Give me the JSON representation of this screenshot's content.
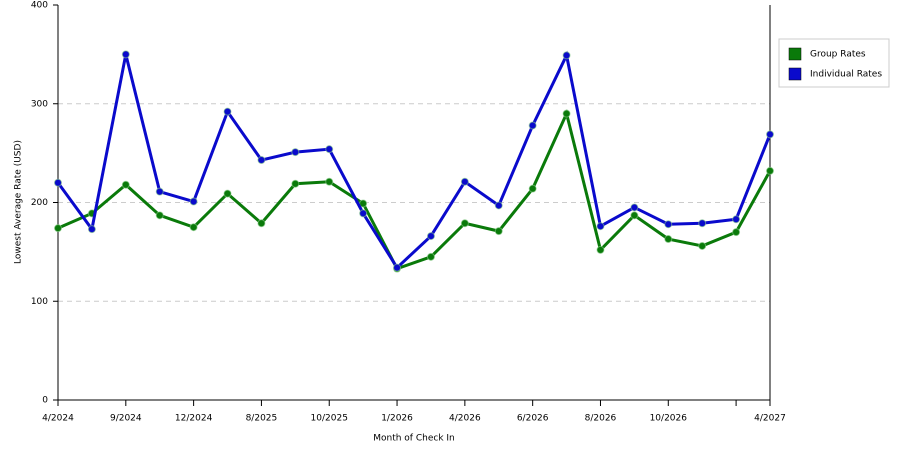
{
  "chart_data": {
    "type": "line",
    "x_label": "Month of Check In",
    "y_label": "Lowest Average Rate (USD)",
    "categories": [
      "4/2024",
      null,
      "9/2024",
      null,
      "12/2024",
      null,
      "8/2025",
      null,
      "10/2025",
      null,
      "1/2026",
      null,
      "4/2026",
      null,
      "6/2026",
      null,
      "8/2026",
      null,
      "10/2026",
      null,
      null,
      "4/2027"
    ],
    "series": [
      {
        "name": "Group Rates",
        "color": "#0a7a0a",
        "values": [
          174,
          189,
          218,
          187,
          175,
          209,
          179,
          219,
          221,
          199,
          133,
          145,
          179,
          171,
          214,
          290,
          152,
          187,
          163,
          156,
          170,
          232
        ]
      },
      {
        "name": "Individual Rates",
        "color": "#0a0acc",
        "values": [
          220,
          173,
          350,
          211,
          201,
          292,
          243,
          251,
          254,
          189,
          134,
          166,
          221,
          197,
          278,
          349,
          176,
          195,
          178,
          179,
          183,
          269
        ]
      }
    ],
    "ylim": [
      0,
      400
    ],
    "yticks": [
      0,
      100,
      200,
      300,
      400
    ],
    "grid": true
  }
}
